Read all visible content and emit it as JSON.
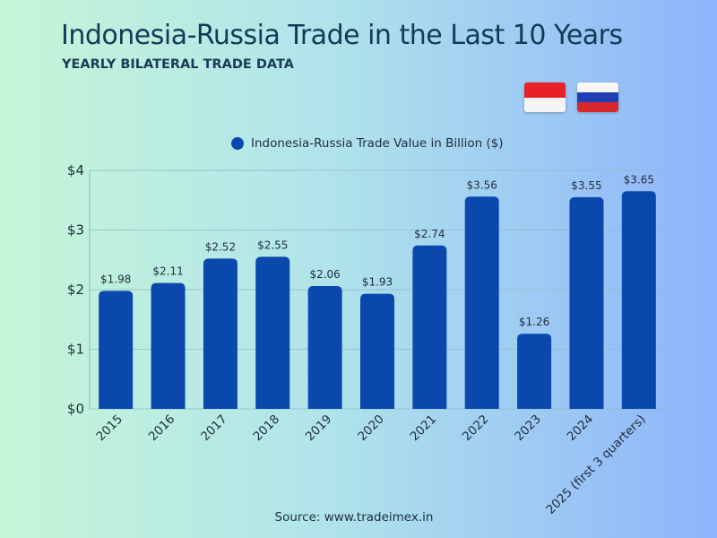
{
  "header": {
    "title": "Indonesia-Russia Trade in the Last 10 Years",
    "subtitle": "YEARLY BILATERAL TRADE DATA"
  },
  "flags": [
    {
      "name": "indonesia",
      "stripes": [
        "#e8202a",
        "#f5f5f5"
      ]
    },
    {
      "name": "russia",
      "stripes": [
        "#f7f7f7",
        "#1f40b5",
        "#d8282b"
      ]
    }
  ],
  "colors": {
    "bar": "#0a48ad",
    "grid": "#8fb8c9",
    "text": "#1f2d3d"
  },
  "legend": {
    "position": "top-center"
  },
  "chart_data": {
    "type": "bar",
    "title": "",
    "xlabel": "",
    "ylabel": "",
    "categories": [
      "2015",
      "2016",
      "2017",
      "2018",
      "2019",
      "2020",
      "2021",
      "2022",
      "2023",
      "2024",
      "2025 (first 3 quarters)"
    ],
    "series": [
      {
        "name": "Indonesia-Russia Trade Value in Billion ($)",
        "values": [
          1.98,
          2.11,
          2.52,
          2.55,
          2.06,
          1.93,
          2.74,
          3.56,
          1.26,
          3.55,
          3.65
        ]
      }
    ],
    "data_labels": [
      "$1.98",
      "$2.11",
      "$2.52",
      "$2.55",
      "$2.06",
      "$1.93",
      "$2.74",
      "$3.56",
      "$1.26",
      "$3.55",
      "$3.65"
    ],
    "ylim": [
      0,
      4
    ],
    "yticks": [
      0,
      1,
      2,
      3,
      4
    ],
    "ytick_labels": [
      "$0",
      "$1",
      "$2",
      "$3",
      "$4"
    ],
    "grid": true
  },
  "footer": {
    "source": "Source: www.tradeimex.in"
  }
}
